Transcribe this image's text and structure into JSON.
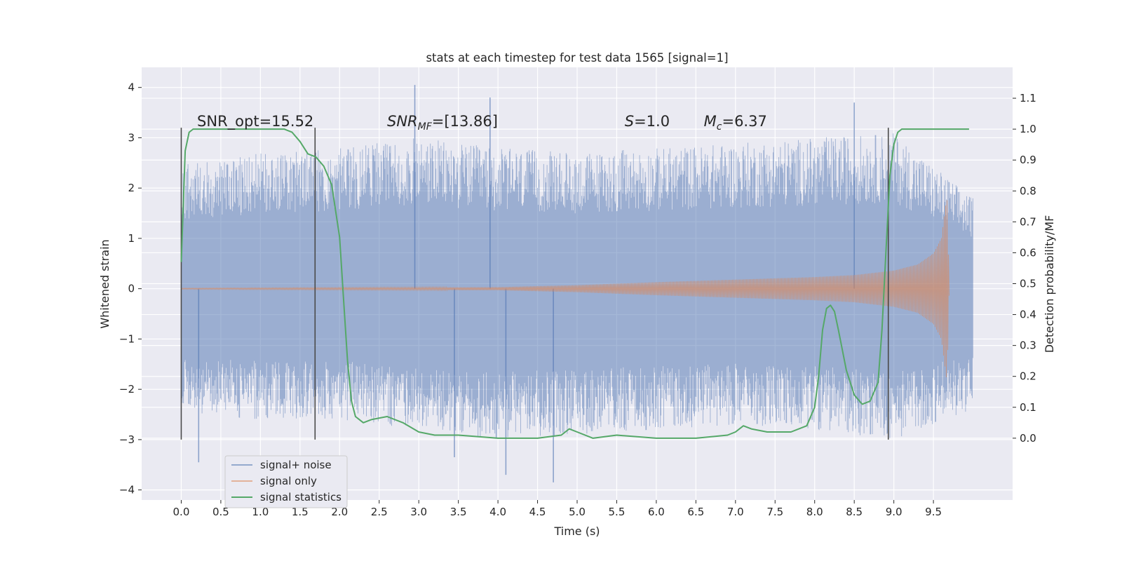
{
  "chart_data": {
    "type": "line",
    "title": "stats at each timestep for test data 1565 [signal=1]",
    "xlabel": "Time (s)",
    "ylabel": "Whitened strain",
    "ylabel_right": "Detection probability/MF",
    "xlim": [
      -0.5,
      10.5
    ],
    "ylim": [
      -4.2,
      4.4
    ],
    "ylim_right": [
      -0.2,
      1.2
    ],
    "x_ticks": [
      "0.0",
      "0.5",
      "1.0",
      "1.5",
      "2.0",
      "2.5",
      "3.0",
      "3.5",
      "4.0",
      "4.5",
      "5.0",
      "5.5",
      "6.0",
      "6.5",
      "7.0",
      "7.5",
      "8.0",
      "8.5",
      "9.0",
      "9.5"
    ],
    "y_ticks_left": [
      "−4",
      "−3",
      "−2",
      "−1",
      "0",
      "1",
      "2",
      "3",
      "4"
    ],
    "y_ticks_right": [
      "0.0",
      "0.1",
      "0.2",
      "0.3",
      "0.4",
      "0.5",
      "0.6",
      "0.7",
      "0.8",
      "0.9",
      "1.0",
      "1.1"
    ],
    "grid": true,
    "legend_position": "lower-left",
    "annotations": [
      {
        "text": "SNR_opt=15.52",
        "x": 0.2,
        "y": 3.2
      },
      {
        "text": "SNR_MF=[13.86]",
        "x": 2.6,
        "y": 3.2
      },
      {
        "text": "S=1.0",
        "x": 5.6,
        "y": 3.2
      },
      {
        "text": "M_c=6.37",
        "x": 6.6,
        "y": 3.2
      }
    ],
    "vertical_lines": [
      {
        "x": 0.0,
        "y_range": [
          -3.0,
          3.2
        ]
      },
      {
        "x": 1.69,
        "y_range": [
          -3.0,
          3.2
        ]
      },
      {
        "x": 8.93,
        "y_range": [
          -3.0,
          3.2
        ]
      }
    ],
    "series": [
      {
        "name": "signal+ noise",
        "color": "#4c72b0",
        "kind": "noisy strain",
        "x_range": [
          0.0,
          10.0
        ],
        "envelope_x": [
          0.0,
          1.0,
          2.0,
          3.0,
          4.0,
          5.0,
          6.0,
          7.0,
          8.0,
          9.0,
          10.0
        ],
        "envelope_high": [
          2.5,
          2.7,
          2.8,
          3.0,
          2.8,
          2.7,
          2.8,
          2.9,
          3.0,
          3.1,
          1.8
        ],
        "envelope_low": [
          -2.5,
          -2.6,
          -2.6,
          -2.8,
          -3.0,
          -2.9,
          -2.8,
          -2.7,
          -2.8,
          -3.0,
          -2.4
        ],
        "peak_values": [
          {
            "x": 2.95,
            "y": 4.05
          },
          {
            "x": 3.9,
            "y": 3.8
          },
          {
            "x": 8.5,
            "y": 3.7
          },
          {
            "x": 0.22,
            "y": -3.45
          },
          {
            "x": 3.45,
            "y": -3.35
          },
          {
            "x": 4.1,
            "y": -3.7
          },
          {
            "x": 4.7,
            "y": -3.85
          }
        ]
      },
      {
        "name": "signal only",
        "color": "#dd8452",
        "kind": "chirp",
        "x_range": [
          0.0,
          9.7
        ],
        "merger_x": 9.67,
        "amplitude_x": [
          0.0,
          4.0,
          5.0,
          6.0,
          7.0,
          8.0,
          8.5,
          9.0,
          9.3,
          9.5,
          9.6,
          9.67,
          9.7
        ],
        "amplitude": [
          0.01,
          0.03,
          0.07,
          0.13,
          0.18,
          0.23,
          0.27,
          0.36,
          0.48,
          0.7,
          1.0,
          1.85,
          0.02
        ]
      },
      {
        "name": "signal statistics",
        "color": "#55a868",
        "axis": "right",
        "x": [
          0.0,
          0.05,
          0.1,
          0.15,
          0.3,
          0.6,
          0.9,
          1.1,
          1.3,
          1.4,
          1.5,
          1.6,
          1.7,
          1.8,
          1.9,
          2.0,
          2.05,
          2.1,
          2.15,
          2.2,
          2.3,
          2.4,
          2.6,
          2.8,
          3.0,
          3.2,
          3.5,
          4.0,
          4.5,
          4.8,
          4.9,
          5.0,
          5.2,
          5.5,
          6.0,
          6.5,
          6.9,
          7.0,
          7.1,
          7.2,
          7.4,
          7.7,
          7.9,
          8.0,
          8.05,
          8.1,
          8.15,
          8.2,
          8.25,
          8.3,
          8.4,
          8.5,
          8.6,
          8.7,
          8.8,
          8.85,
          8.9,
          8.95,
          9.0,
          9.05,
          9.1,
          9.2,
          9.5,
          9.95
        ],
        "values": [
          0.57,
          0.93,
          0.99,
          1.0,
          1.0,
          1.0,
          1.0,
          1.0,
          1.0,
          0.99,
          0.96,
          0.92,
          0.91,
          0.88,
          0.82,
          0.65,
          0.45,
          0.25,
          0.12,
          0.07,
          0.05,
          0.06,
          0.07,
          0.05,
          0.02,
          0.01,
          0.01,
          0.0,
          0.0,
          0.01,
          0.03,
          0.02,
          0.0,
          0.01,
          0.0,
          0.0,
          0.01,
          0.02,
          0.04,
          0.03,
          0.02,
          0.02,
          0.04,
          0.1,
          0.2,
          0.35,
          0.42,
          0.43,
          0.41,
          0.35,
          0.22,
          0.14,
          0.11,
          0.12,
          0.18,
          0.35,
          0.6,
          0.85,
          0.95,
          0.99,
          1.0,
          1.0,
          1.0,
          1.0
        ]
      }
    ]
  }
}
